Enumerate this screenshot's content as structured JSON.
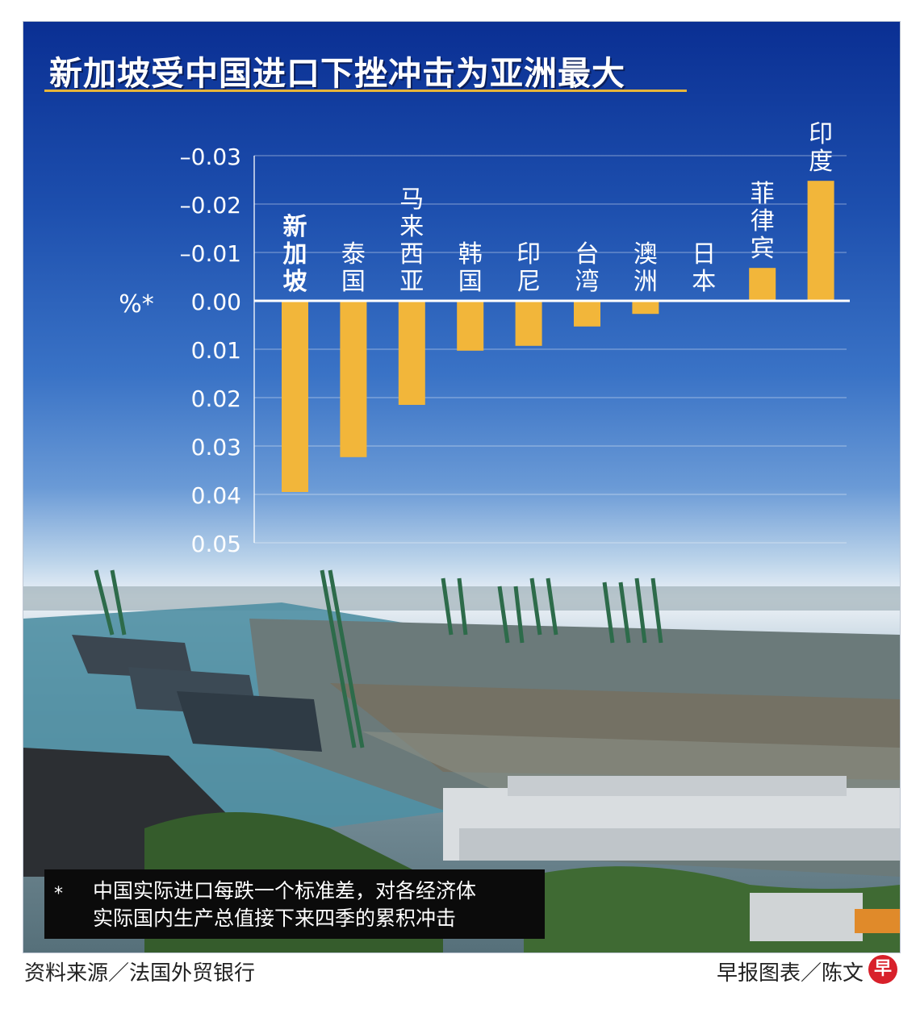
{
  "title": "新加坡受中国进口下挫冲击为亚洲最大",
  "chart_data": {
    "type": "bar",
    "categories": [
      "新加坡",
      "泰国",
      "马来西亚",
      "韩国",
      "印尼",
      "台湾",
      "澳洲",
      "日本",
      "菲律宾",
      "印度"
    ],
    "values": [
      0.0395,
      0.0323,
      0.0215,
      0.0103,
      0.0093,
      0.0053,
      0.0027,
      0.0,
      -0.0068,
      -0.0248
    ],
    "ylabel": "%*",
    "ylim": [
      -0.03,
      0.05
    ],
    "y_axis_inverted": true,
    "yticks": [
      -0.03,
      -0.02,
      -0.01,
      0.0,
      0.01,
      0.02,
      0.03,
      0.04,
      0.05
    ],
    "ytick_labels": [
      "–0.03",
      "–0.02",
      "–0.01",
      "0.00",
      "0.01",
      "0.02",
      "0.03",
      "0.04",
      "0.05"
    ],
    "grid": true,
    "bar_color": "#f2b63a",
    "highlight_category": "新加坡"
  },
  "footnote": {
    "marker": "*",
    "line1": "中国实际进口每跌一个标准差，对各经济体",
    "line2": "实际国内生产总值接下来四季的累积冲击"
  },
  "source": "资料来源／法国外贸银行",
  "credit": "早报图表／陈文",
  "logo_text": "早"
}
